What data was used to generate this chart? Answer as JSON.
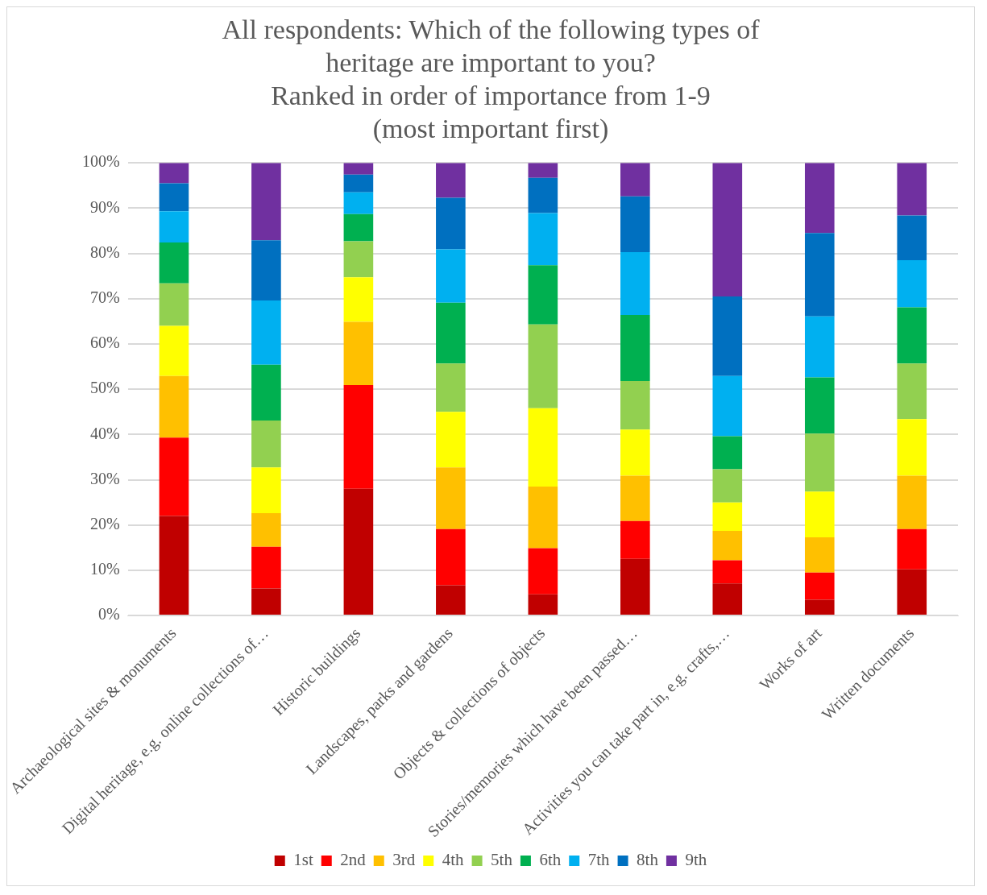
{
  "chart_data": {
    "type": "bar",
    "stacked": true,
    "title": "All respondents: Which of the following types of\nheritage are important to you?\nRanked in order of importance from 1-9\n(most important first)",
    "categories": [
      "Archaeological sites & monuments",
      "Digital heritage, e.g. online collections of…",
      "Historic buildings",
      "Landscapes, parks and gardens",
      "Objects & collections of objects",
      "Stories/memories which have been passed…",
      "Activities you can take part in, e.g. crafts,…",
      "Works of art",
      "Written documents"
    ],
    "series": [
      {
        "name": "1st",
        "color": "#c00000",
        "values": [
          22.0,
          6.0,
          28.0,
          6.7,
          4.7,
          12.5,
          7.1,
          3.5,
          10.2
        ]
      },
      {
        "name": "2nd",
        "color": "#ff0000",
        "values": [
          17.3,
          9.2,
          22.9,
          12.4,
          10.2,
          8.4,
          5.1,
          6.0,
          8.9
        ]
      },
      {
        "name": "3rd",
        "color": "#ffc000",
        "values": [
          13.6,
          7.4,
          14.0,
          13.6,
          13.6,
          10.0,
          6.5,
          7.8,
          11.8
        ]
      },
      {
        "name": "4th",
        "color": "#ffff00",
        "values": [
          11.1,
          10.1,
          9.8,
          12.3,
          17.3,
          10.2,
          6.3,
          10.1,
          12.5
        ]
      },
      {
        "name": "5th",
        "color": "#92d050",
        "values": [
          9.4,
          10.4,
          8.0,
          10.7,
          18.5,
          10.7,
          7.3,
          12.8,
          12.3
        ]
      },
      {
        "name": "6th",
        "color": "#00b050",
        "values": [
          9.0,
          12.3,
          6.0,
          13.4,
          13.1,
          14.6,
          7.3,
          12.4,
          12.4
        ]
      },
      {
        "name": "7th",
        "color": "#00b0f0",
        "values": [
          6.9,
          14.2,
          4.8,
          11.8,
          11.5,
          13.9,
          13.3,
          13.5,
          10.4
        ]
      },
      {
        "name": "8th",
        "color": "#0070c0",
        "values": [
          6.2,
          13.3,
          3.9,
          11.4,
          7.8,
          12.3,
          17.6,
          18.4,
          9.9
        ]
      },
      {
        "name": "9th",
        "color": "#7030a0",
        "values": [
          4.5,
          17.1,
          2.6,
          7.7,
          3.3,
          7.4,
          29.5,
          15.5,
          11.6
        ]
      }
    ],
    "ylim": [
      0,
      100
    ],
    "yticks": [
      {
        "value": 0,
        "label": "0%"
      },
      {
        "value": 10,
        "label": "10%"
      },
      {
        "value": 20,
        "label": "20%"
      },
      {
        "value": 30,
        "label": "30%"
      },
      {
        "value": 40,
        "label": "40%"
      },
      {
        "value": 50,
        "label": "50%"
      },
      {
        "value": 60,
        "label": "60%"
      },
      {
        "value": 70,
        "label": "70%"
      },
      {
        "value": 80,
        "label": "80%"
      },
      {
        "value": 90,
        "label": "90%"
      },
      {
        "value": 100,
        "label": "100%"
      }
    ],
    "grid": "y",
    "legend": "bottom"
  }
}
